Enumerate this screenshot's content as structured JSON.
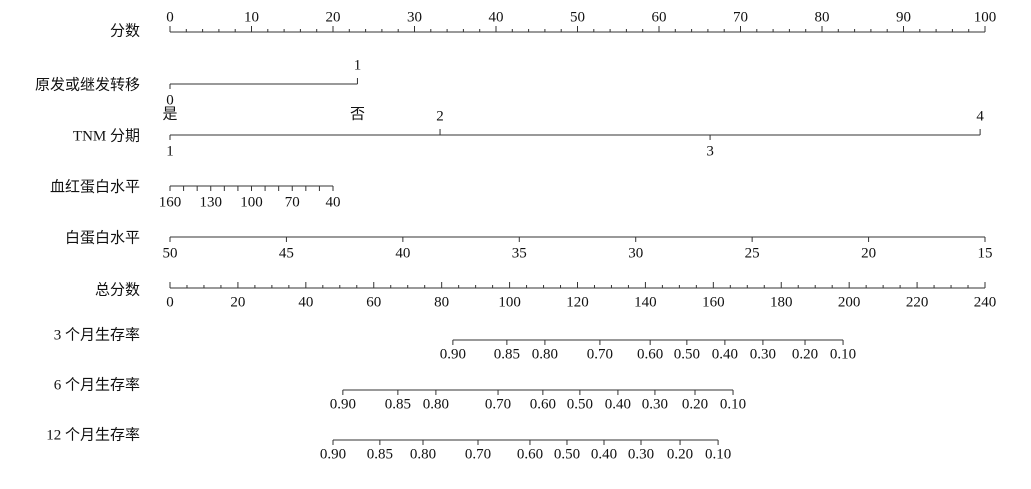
{
  "chart_data": {
    "type": "nomogram",
    "points_axis": {
      "label": "分数",
      "xlim": [
        0,
        100
      ],
      "ticks": [
        0,
        10,
        20,
        30,
        40,
        50,
        60,
        70,
        80,
        90,
        100
      ],
      "minor_divisions": 5
    },
    "variables": [
      {
        "label": "原发或继发转移",
        "xlim": [
          0,
          1
        ],
        "points": [
          0,
          23
        ],
        "ticks": [
          0,
          1
        ],
        "tick_names": [
          "是",
          "否"
        ],
        "alternate_labels": true
      },
      {
        "label": "TNM 分期",
        "xlim": [
          1,
          4
        ],
        "points": [
          0,
          99.4
        ],
        "ticks": [
          1,
          2,
          3,
          4
        ],
        "alternate_labels": true
      },
      {
        "label": "血红蛋白水平",
        "xlim": [
          160,
          40
        ],
        "points": [
          0,
          20
        ],
        "ticks": [
          160,
          {
            "value": 150,
            "label": null
          },
          {
            "value": 140,
            "label": null
          },
          130,
          {
            "value": 120,
            "label": null
          },
          {
            "value": 110,
            "label": null
          },
          100,
          {
            "value": 90,
            "label": null
          },
          {
            "value": 80,
            "label": null
          },
          70,
          {
            "value": 60,
            "label": null
          },
          {
            "value": 50,
            "label": null
          },
          40
        ],
        "alternate_labels": false
      },
      {
        "label": "白蛋白水平",
        "xlim": [
          50,
          15
        ],
        "points": [
          0,
          100
        ],
        "ticks": [
          50,
          45,
          40,
          35,
          30,
          25,
          20,
          15
        ],
        "alternate_labels": false
      }
    ],
    "total_axis": {
      "label": "总分数",
      "xlim": [
        0,
        240
      ],
      "ticks": [
        0,
        20,
        40,
        60,
        80,
        100,
        120,
        140,
        160,
        180,
        200,
        220,
        240
      ],
      "minor_divisions": 4
    },
    "outcomes": [
      {
        "label": "3 个月生存率",
        "ticks": [
          {
            "value": 0.9,
            "label": "0.90"
          },
          0.85,
          {
            "value": 0.8,
            "label": "0.80"
          },
          {
            "value": 0.7,
            "label": "0.70"
          },
          {
            "value": 0.6,
            "label": "0.60"
          },
          {
            "value": 0.5,
            "label": "0.50"
          },
          {
            "value": 0.4,
            "label": "0.40"
          },
          {
            "value": 0.3,
            "label": "0.30"
          },
          {
            "value": 0.2,
            "label": "0.20"
          },
          {
            "value": 0.1,
            "label": "0.10"
          }
        ],
        "total_points": [
          83.3,
          99.2,
          110.4,
          126.6,
          141.4,
          152.2,
          163.4,
          174.6,
          187.0,
          198.2
        ]
      },
      {
        "label": "6 个月生存率",
        "ticks": [
          {
            "value": 0.9,
            "label": "0.90"
          },
          0.85,
          {
            "value": 0.8,
            "label": "0.80"
          },
          {
            "value": 0.7,
            "label": "0.70"
          },
          {
            "value": 0.6,
            "label": "0.60"
          },
          {
            "value": 0.5,
            "label": "0.50"
          },
          {
            "value": 0.4,
            "label": "0.40"
          },
          {
            "value": 0.3,
            "label": "0.30"
          },
          {
            "value": 0.2,
            "label": "0.20"
          },
          {
            "value": 0.1,
            "label": "0.10"
          }
        ],
        "total_points": [
          50.9,
          67.1,
          78.3,
          96.6,
          109.8,
          120.7,
          131.9,
          142.8,
          154.6,
          165.8
        ]
      },
      {
        "label": "12 个月生存率",
        "ticks": [
          {
            "value": 0.9,
            "label": "0.90"
          },
          0.85,
          {
            "value": 0.8,
            "label": "0.80"
          },
          {
            "value": 0.7,
            "label": "0.70"
          },
          {
            "value": 0.6,
            "label": "0.60"
          },
          {
            "value": 0.5,
            "label": "0.50"
          },
          {
            "value": 0.4,
            "label": "0.40"
          },
          {
            "value": 0.3,
            "label": "0.30"
          },
          {
            "value": 0.2,
            "label": "0.20"
          },
          {
            "value": 0.1,
            "label": "0.10"
          }
        ],
        "total_points": [
          48.0,
          61.8,
          74.5,
          90.7,
          106.0,
          116.9,
          127.8,
          138.7,
          150.2,
          161.4
        ]
      }
    ]
  }
}
